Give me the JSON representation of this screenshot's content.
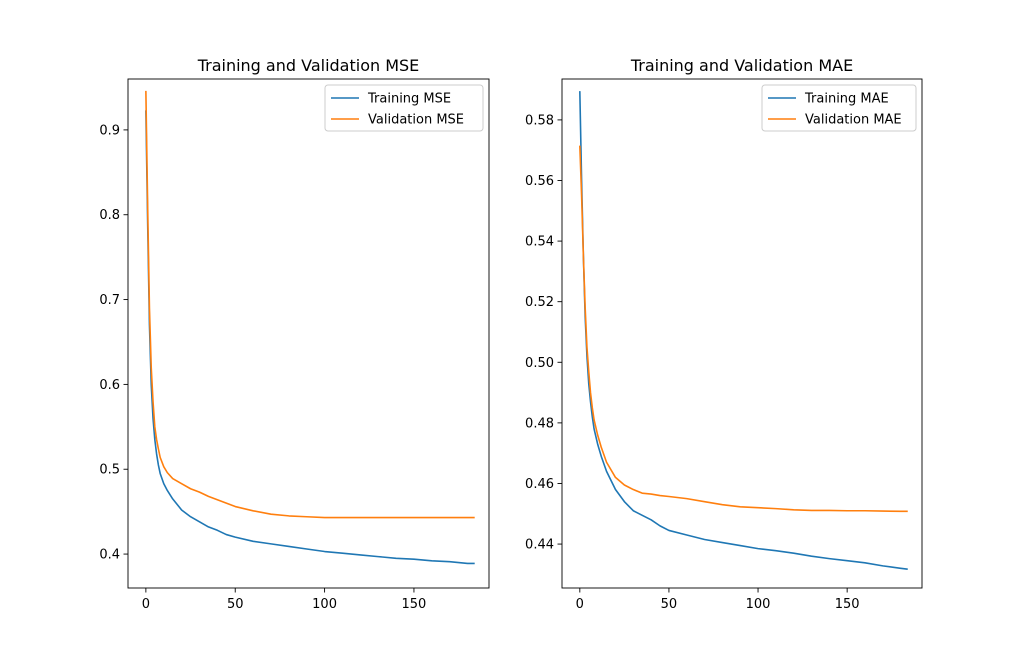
{
  "chart_data": [
    {
      "type": "line",
      "title": "Training and Validation MSE",
      "xlabel": "",
      "ylabel": "",
      "xlim": [
        -10,
        192
      ],
      "ylim": [
        0.36,
        0.96
      ],
      "xticks": [
        0,
        50,
        100,
        150
      ],
      "yticks": [
        0.4,
        0.5,
        0.6,
        0.7,
        0.8,
        0.9
      ],
      "xtick_labels": [
        "0",
        "50",
        "100",
        "150"
      ],
      "ytick_labels": [
        "0.4",
        "0.5",
        "0.6",
        "0.7",
        "0.8",
        "0.9"
      ],
      "legend_position": "top-right",
      "grid": false,
      "series": [
        {
          "name": "Training MSE",
          "color": "#1f77b4",
          "x": [
            0,
            1,
            2,
            3,
            4,
            5,
            6,
            7,
            8,
            10,
            12,
            15,
            20,
            25,
            30,
            35,
            40,
            45,
            50,
            60,
            70,
            80,
            90,
            100,
            110,
            120,
            130,
            140,
            150,
            160,
            170,
            180,
            184
          ],
          "y": [
            0.923,
            0.79,
            0.67,
            0.6,
            0.56,
            0.535,
            0.518,
            0.505,
            0.495,
            0.483,
            0.475,
            0.465,
            0.452,
            0.444,
            0.438,
            0.432,
            0.428,
            0.423,
            0.42,
            0.415,
            0.412,
            0.409,
            0.406,
            0.403,
            0.401,
            0.399,
            0.397,
            0.395,
            0.394,
            0.392,
            0.391,
            0.389,
            0.389
          ]
        },
        {
          "name": "Validation MSE",
          "color": "#ff7f0e",
          "x": [
            0,
            1,
            2,
            3,
            4,
            5,
            6,
            7,
            8,
            10,
            12,
            15,
            20,
            25,
            30,
            35,
            40,
            45,
            50,
            60,
            70,
            80,
            90,
            100,
            110,
            120,
            130,
            140,
            150,
            160,
            170,
            180,
            184
          ],
          "y": [
            0.946,
            0.81,
            0.69,
            0.62,
            0.58,
            0.55,
            0.535,
            0.524,
            0.514,
            0.503,
            0.496,
            0.489,
            0.483,
            0.477,
            0.473,
            0.468,
            0.464,
            0.46,
            0.456,
            0.451,
            0.447,
            0.445,
            0.444,
            0.443,
            0.443,
            0.443,
            0.443,
            0.443,
            0.443,
            0.443,
            0.443,
            0.443,
            0.443
          ]
        }
      ]
    },
    {
      "type": "line",
      "title": "Training and Validation MAE",
      "xlabel": "",
      "ylabel": "",
      "xlim": [
        -10,
        192
      ],
      "ylim": [
        0.4255,
        0.5935
      ],
      "xticks": [
        0,
        50,
        100,
        150
      ],
      "yticks": [
        0.44,
        0.46,
        0.48,
        0.5,
        0.52,
        0.54,
        0.56,
        0.58
      ],
      "xtick_labels": [
        "0",
        "50",
        "100",
        "150"
      ],
      "ytick_labels": [
        "0.44",
        "0.46",
        "0.48",
        "0.50",
        "0.52",
        "0.54",
        "0.56",
        "0.58"
      ],
      "legend_position": "top-right",
      "grid": false,
      "series": [
        {
          "name": "Training MAE",
          "color": "#1f77b4",
          "x": [
            0,
            1,
            2,
            3,
            4,
            5,
            6,
            7,
            8,
            10,
            12,
            15,
            20,
            25,
            30,
            35,
            40,
            45,
            50,
            60,
            70,
            80,
            90,
            100,
            110,
            120,
            130,
            140,
            150,
            160,
            170,
            180,
            184
          ],
          "y": [
            0.5895,
            0.56,
            0.535,
            0.515,
            0.502,
            0.493,
            0.487,
            0.482,
            0.478,
            0.473,
            0.469,
            0.464,
            0.458,
            0.454,
            0.451,
            0.4495,
            0.448,
            0.446,
            0.4445,
            0.443,
            0.4415,
            0.4405,
            0.4395,
            0.4385,
            0.4378,
            0.437,
            0.436,
            0.4352,
            0.4345,
            0.4338,
            0.4328,
            0.432,
            0.4317
          ]
        },
        {
          "name": "Validation MAE",
          "color": "#ff7f0e",
          "x": [
            0,
            1,
            2,
            3,
            4,
            5,
            6,
            7,
            8,
            10,
            12,
            15,
            20,
            25,
            30,
            35,
            40,
            45,
            50,
            60,
            70,
            80,
            90,
            100,
            110,
            120,
            130,
            140,
            150,
            160,
            170,
            180,
            184
          ],
          "y": [
            0.5715,
            0.555,
            0.535,
            0.518,
            0.505,
            0.497,
            0.49,
            0.485,
            0.481,
            0.476,
            0.472,
            0.467,
            0.462,
            0.4595,
            0.458,
            0.4568,
            0.4565,
            0.456,
            0.4557,
            0.455,
            0.454,
            0.453,
            0.4523,
            0.452,
            0.4517,
            0.4513,
            0.4511,
            0.4511,
            0.451,
            0.451,
            0.4509,
            0.4508,
            0.4508
          ]
        }
      ]
    }
  ]
}
